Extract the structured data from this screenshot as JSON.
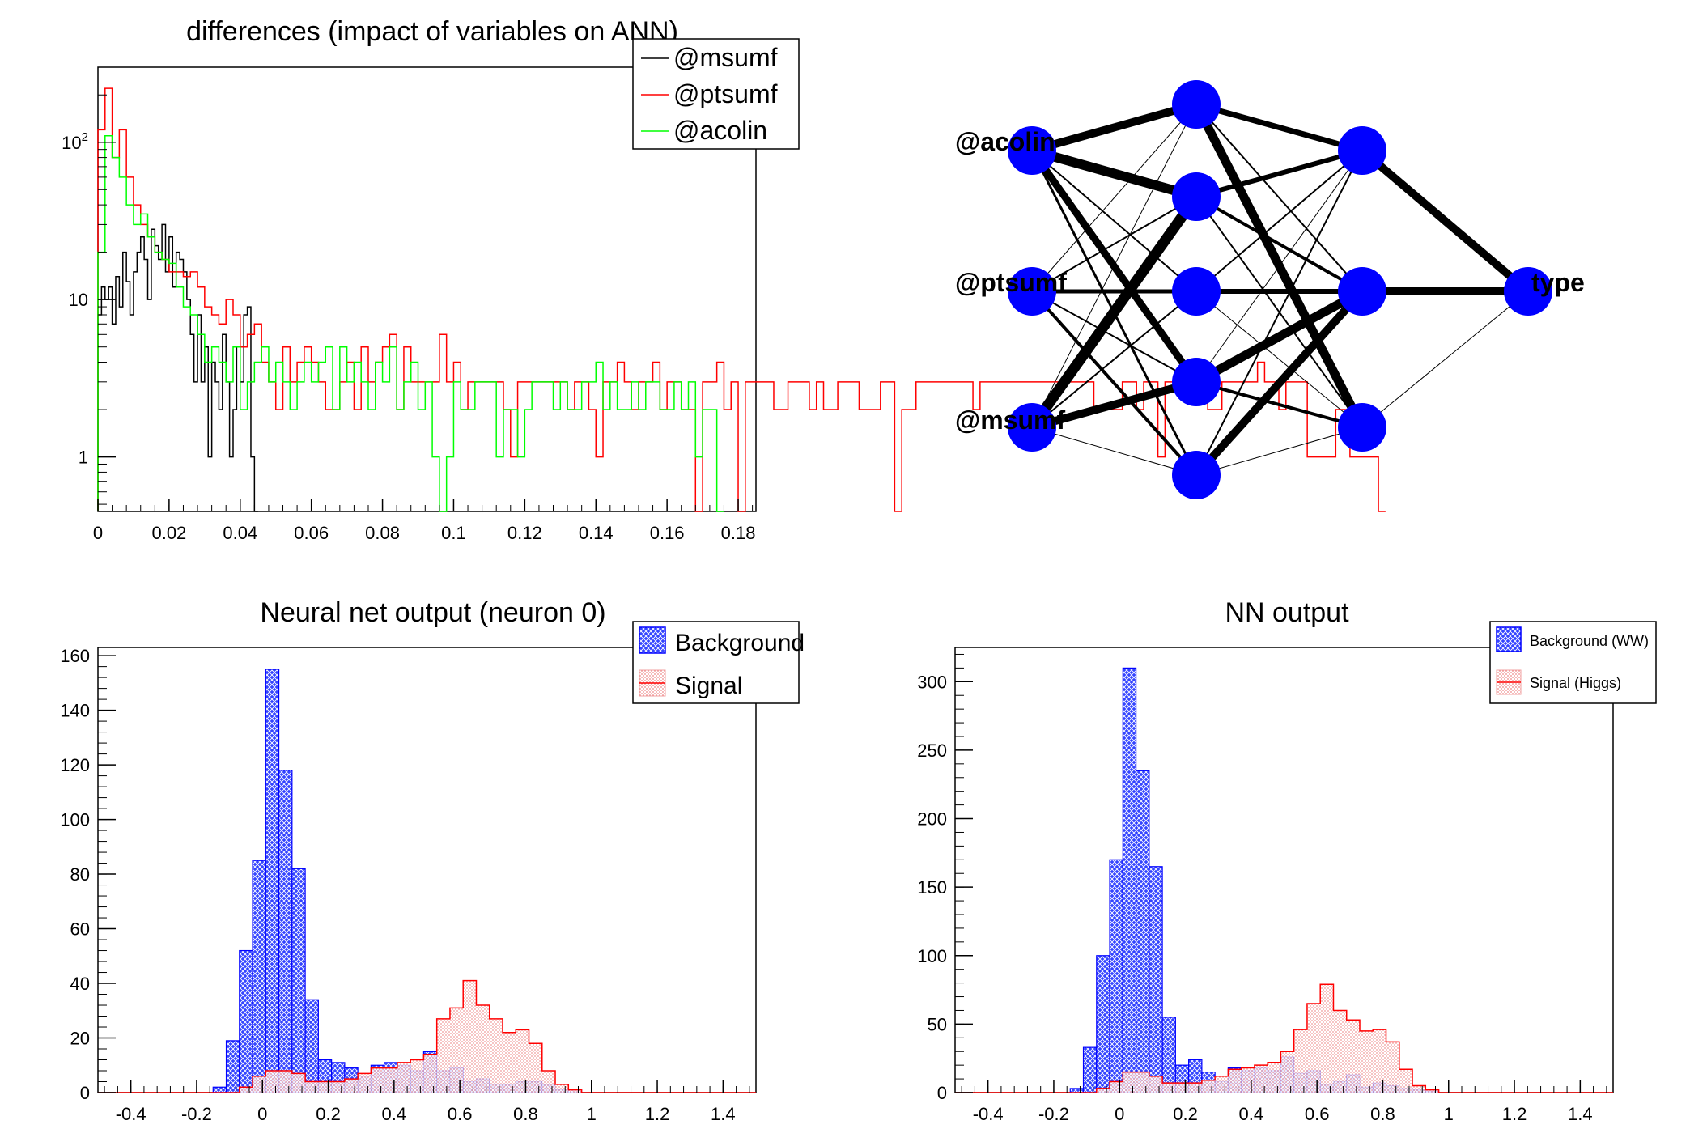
{
  "colors": {
    "background_hist": "#0000ff",
    "signal_hist": "#ff0000",
    "signal_fill": "#f5c5c5",
    "msumf": "#000000",
    "ptsumf": "#ff0000",
    "acolin": "#00ff00",
    "neuron": "#0000ff",
    "weights": "#000000"
  },
  "chart_data": [
    {
      "id": "differences",
      "type": "step",
      "title": "differences (impact of variables on ANN)",
      "xlabel": "",
      "ylabel": "",
      "xlim": [
        0,
        0.185
      ],
      "ylim": [
        0.45,
        300
      ],
      "yscale": "log",
      "xticks": [
        "0",
        "0.02",
        "0.04",
        "0.06",
        "0.08",
        "0.1",
        "0.12",
        "0.14",
        "0.16",
        "0.18"
      ],
      "yticks": [
        "1",
        "10",
        "10^2"
      ],
      "legend": {
        "position": "top-right",
        "entries": [
          "@msumf",
          "@ptsumf",
          "@acolin"
        ]
      },
      "series": [
        {
          "name": "@msumf",
          "color": "#000000",
          "bin_width": 0.001,
          "start": 0,
          "values": [
            8,
            12,
            10,
            12,
            7,
            14,
            9,
            20,
            13,
            8,
            15,
            20,
            25,
            18,
            10,
            28,
            22,
            18,
            30,
            15,
            25,
            12,
            20,
            18,
            15,
            10,
            6,
            3,
            8,
            3,
            5,
            1,
            4,
            3,
            2,
            6,
            3,
            1,
            2,
            5,
            3,
            8,
            9,
            1,
            0.3
          ]
        },
        {
          "name": "@ptsumf",
          "color": "#ff0000",
          "bin_width": 0.002,
          "start": 0,
          "values": [
            120,
            220,
            80,
            120,
            60,
            40,
            30,
            25,
            20,
            18,
            15,
            15,
            14,
            15,
            12,
            9,
            8,
            7,
            10,
            8,
            5,
            6,
            7,
            4,
            3,
            2,
            5,
            3,
            4,
            5,
            4,
            3,
            2,
            2,
            3,
            4,
            2,
            5,
            3,
            4,
            5,
            6,
            2,
            5,
            3,
            3,
            3,
            3,
            6,
            3,
            4,
            2,
            3,
            3,
            3,
            3,
            3,
            2,
            1,
            3,
            3,
            3,
            3,
            3,
            3,
            3,
            2,
            3,
            3,
            2,
            1,
            3,
            3,
            4,
            3,
            2,
            3,
            3,
            4,
            2,
            3,
            3,
            2,
            2,
            0.3,
            3,
            3,
            4,
            2,
            3,
            0.3,
            3,
            3,
            3,
            3,
            2,
            2,
            3,
            3,
            3,
            2,
            3,
            2,
            2,
            3,
            3,
            3,
            2,
            2,
            2,
            3,
            3,
            0.3,
            2,
            2,
            3,
            3,
            3,
            3,
            3,
            3,
            3,
            3,
            2,
            3,
            3,
            3,
            3,
            3,
            3,
            3,
            3,
            3,
            3,
            3,
            3,
            3,
            3,
            3,
            3,
            2,
            2,
            2,
            2,
            3,
            3,
            2,
            3,
            3,
            1,
            3,
            3,
            3,
            3,
            3,
            3,
            2,
            2,
            3,
            3,
            3,
            3,
            3,
            4,
            3,
            3,
            2,
            3,
            3,
            3,
            1,
            1,
            1,
            1,
            2,
            2,
            1,
            1,
            1,
            1,
            0.3
          ]
        },
        {
          "name": "@acolin",
          "color": "#00ff00",
          "bin_width": 0.002,
          "start": 0,
          "values": [
            20,
            110,
            80,
            60,
            40,
            30,
            35,
            25,
            20,
            18,
            17,
            12,
            9,
            8,
            6,
            4,
            5,
            4,
            3,
            5,
            2,
            3,
            4,
            5,
            3,
            4,
            3,
            2,
            3,
            4,
            3,
            4,
            5,
            2,
            5,
            3,
            4,
            3,
            2,
            4,
            3,
            5,
            2,
            3,
            4,
            2,
            3,
            1,
            0.3,
            1,
            3,
            2,
            2,
            3,
            3,
            3,
            1,
            2,
            2,
            1,
            2,
            3,
            3,
            3,
            2,
            3,
            2,
            2,
            3,
            3,
            4,
            2,
            3,
            2,
            2,
            3,
            2,
            3,
            3,
            2,
            2,
            3,
            2,
            3,
            1,
            2,
            2,
            0.3
          ]
        }
      ]
    },
    {
      "id": "network",
      "type": "diagram",
      "input_labels": [
        "@acolin",
        "@ptsumf",
        "@msumf"
      ],
      "output_label": "type",
      "layers": [
        3,
        5,
        3,
        1
      ]
    },
    {
      "id": "nn_output_neuron0",
      "type": "hist",
      "title": "Neural net output (neuron 0)",
      "xlabel": "",
      "ylabel": "",
      "xlim": [
        -0.5,
        1.5
      ],
      "ylim": [
        0,
        163
      ],
      "xticks": [
        "-0.4",
        "-0.2",
        "0",
        "0.2",
        "0.4",
        "0.6",
        "0.8",
        "1",
        "1.2",
        "1.4"
      ],
      "yticks": [
        "0",
        "20",
        "40",
        "60",
        "80",
        "100",
        "120",
        "140",
        "160"
      ],
      "legend": {
        "position": "top-right",
        "entries": [
          "Background",
          "Signal"
        ]
      },
      "bin_edges_start": -0.15,
      "bin_width": 0.04,
      "series": [
        {
          "name": "Background",
          "color": "#0000ff",
          "values": [
            2,
            19,
            52,
            85,
            155,
            118,
            82,
            34,
            12,
            11,
            9,
            6,
            10,
            11,
            10,
            8,
            15,
            8,
            9,
            4,
            5,
            3,
            3,
            4,
            4,
            3,
            1,
            1,
            0,
            0
          ]
        },
        {
          "name": "Signal",
          "color": "#ff0000",
          "values": [
            0,
            0,
            2,
            6,
            8,
            8,
            7,
            4,
            4,
            4,
            5,
            7,
            9,
            9,
            11,
            12,
            14,
            27,
            31,
            41,
            32,
            27,
            22,
            23,
            18,
            8,
            3,
            1,
            0,
            0
          ]
        }
      ]
    },
    {
      "id": "nn_output",
      "type": "hist",
      "title": "NN output",
      "xlabel": "",
      "ylabel": "",
      "xlim": [
        -0.5,
        1.5
      ],
      "ylim": [
        0,
        325
      ],
      "xticks": [
        "-0.4",
        "-0.2",
        "0",
        "0.2",
        "0.4",
        "0.6",
        "0.8",
        "1",
        "1.2",
        "1.4"
      ],
      "yticks": [
        "0",
        "50",
        "100",
        "150",
        "200",
        "250",
        "300"
      ],
      "legend": {
        "position": "top-right",
        "entries": [
          "Background (WW)",
          "Signal (Higgs)"
        ]
      },
      "bin_edges_start": -0.15,
      "bin_width": 0.04,
      "series": [
        {
          "name": "Background (WW)",
          "color": "#0000ff",
          "values": [
            3,
            33,
            100,
            170,
            310,
            235,
            165,
            55,
            20,
            24,
            15,
            8,
            18,
            16,
            18,
            16,
            26,
            14,
            16,
            6,
            8,
            13,
            4,
            7,
            5,
            3,
            2,
            1,
            0,
            0
          ]
        },
        {
          "name": "Signal (Higgs)",
          "color": "#ff0000",
          "values": [
            0,
            0,
            3,
            8,
            15,
            15,
            12,
            7,
            7,
            7,
            9,
            12,
            17,
            18,
            20,
            22,
            30,
            46,
            65,
            79,
            60,
            53,
            45,
            46,
            37,
            17,
            5,
            2,
            0,
            0
          ]
        }
      ]
    }
  ]
}
